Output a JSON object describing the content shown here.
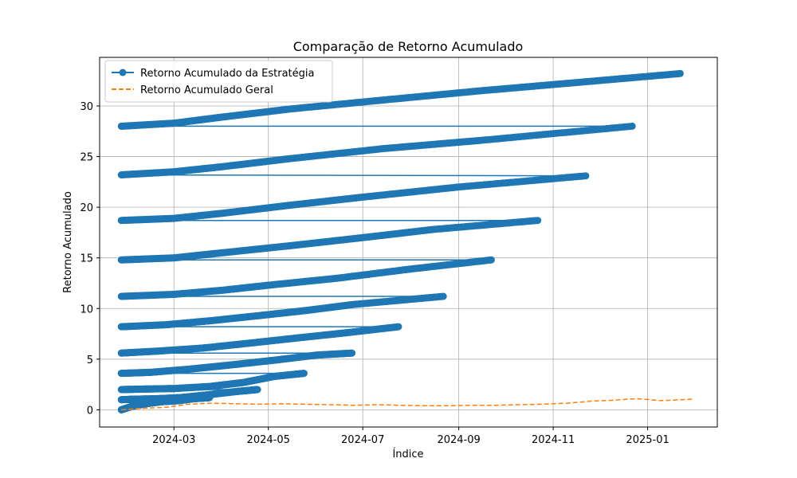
{
  "chart_data": {
    "type": "line",
    "title": "Comparação de Retorno Acumulado",
    "xlabel": "Índice",
    "ylabel": "Retorno Acumulado",
    "x_axis_type": "date",
    "xlim": [
      "2024-01-13",
      "2025-02-15"
    ],
    "ylim": [
      -1.7,
      34.8
    ],
    "x_ticks": [
      "2024-03-01",
      "2024-05-01",
      "2024-07-01",
      "2024-09-01",
      "2024-11-01",
      "2025-01-01"
    ],
    "x_tick_labels": [
      "2024-03",
      "2024-05",
      "2024-07",
      "2024-09",
      "2024-11",
      "2025-01"
    ],
    "y_ticks": [
      0,
      5,
      10,
      15,
      20,
      25,
      30
    ],
    "y_tick_labels": [
      "0",
      "5",
      "10",
      "15",
      "20",
      "25",
      "30"
    ],
    "grid": true,
    "legend_position": "top-left",
    "series": [
      {
        "name": "Retorno Acumulado da Estratégia",
        "color": "#1f77b4",
        "linestyle": "solid",
        "marker": "circle",
        "segments": [
          {
            "x": [
              "2024-01-27",
              "2024-02-02",
              "2024-02-12",
              "2024-02-22",
              "2024-03-04",
              "2024-03-14",
              "2024-03-24"
            ],
            "y": [
              0.0,
              0.3,
              0.6,
              0.8,
              0.9,
              1.1,
              1.2
            ]
          },
          {
            "x": [
              "2024-01-27",
              "2024-02-06",
              "2024-02-20",
              "2024-03-05",
              "2024-03-24",
              "2024-04-10",
              "2024-04-24"
            ],
            "y": [
              1.0,
              1.05,
              1.1,
              1.2,
              1.5,
              1.8,
              2.0
            ]
          },
          {
            "x": [
              "2024-01-27",
              "2024-02-12",
              "2024-03-01",
              "2024-03-24",
              "2024-04-15",
              "2024-05-05",
              "2024-05-24"
            ],
            "y": [
              2.0,
              2.05,
              2.1,
              2.3,
              2.7,
              3.3,
              3.6
            ]
          },
          {
            "x": [
              "2024-01-27",
              "2024-02-15",
              "2024-03-10",
              "2024-04-05",
              "2024-05-05",
              "2024-06-01",
              "2024-06-24"
            ],
            "y": [
              3.6,
              3.7,
              4.0,
              4.4,
              4.9,
              5.4,
              5.6
            ]
          },
          {
            "x": [
              "2024-01-27",
              "2024-02-20",
              "2024-03-20",
              "2024-04-20",
              "2024-05-20",
              "2024-06-20",
              "2024-07-24"
            ],
            "y": [
              5.6,
              5.8,
              6.1,
              6.6,
              7.1,
              7.6,
              8.2
            ]
          },
          {
            "x": [
              "2024-01-27",
              "2024-02-25",
              "2024-03-25",
              "2024-04-25",
              "2024-05-25",
              "2024-06-25",
              "2024-08-22"
            ],
            "y": [
              8.2,
              8.4,
              8.8,
              9.3,
              9.8,
              10.4,
              11.2
            ]
          },
          {
            "x": [
              "2024-01-27",
              "2024-03-01",
              "2024-04-01",
              "2024-05-01",
              "2024-06-15",
              "2024-08-01",
              "2024-09-22"
            ],
            "y": [
              11.2,
              11.4,
              11.8,
              12.3,
              13.0,
              13.9,
              14.8
            ]
          },
          {
            "x": [
              "2024-01-27",
              "2024-03-01",
              "2024-04-01",
              "2024-05-15",
              "2024-07-01",
              "2024-08-15",
              "2024-10-22"
            ],
            "y": [
              14.8,
              15.0,
              15.5,
              16.2,
              17.0,
              17.8,
              18.7
            ]
          },
          {
            "x": [
              "2024-01-27",
              "2024-03-01",
              "2024-04-01",
              "2024-05-15",
              "2024-07-01",
              "2024-09-01",
              "2024-11-22"
            ],
            "y": [
              18.7,
              18.9,
              19.4,
              20.2,
              21.0,
              22.0,
              23.1
            ]
          },
          {
            "x": [
              "2024-01-27",
              "2024-03-01",
              "2024-04-01",
              "2024-05-15",
              "2024-07-15",
              "2024-09-15",
              "2024-12-22"
            ],
            "y": [
              23.2,
              23.5,
              24.0,
              24.8,
              25.8,
              26.6,
              28.0
            ]
          },
          {
            "x": [
              "2024-01-27",
              "2024-03-01",
              "2024-04-01",
              "2024-05-15",
              "2024-07-15",
              "2024-09-15",
              "2024-11-15",
              "2025-01-22"
            ],
            "y": [
              28.0,
              28.3,
              28.9,
              29.7,
              30.6,
              31.5,
              32.3,
              33.2
            ]
          }
        ]
      },
      {
        "name": "Retorno Acumulado Geral",
        "color": "#ff7f0e",
        "linestyle": "dashed",
        "marker": "none",
        "x": [
          "2024-01-27",
          "2024-02-10",
          "2024-02-25",
          "2024-03-10",
          "2024-03-25",
          "2024-04-10",
          "2024-04-25",
          "2024-05-10",
          "2024-05-25",
          "2024-06-10",
          "2024-06-25",
          "2024-07-10",
          "2024-07-25",
          "2024-08-10",
          "2024-08-25",
          "2024-09-10",
          "2024-09-25",
          "2024-10-10",
          "2024-10-25",
          "2024-11-10",
          "2024-11-25",
          "2024-12-10",
          "2024-12-25",
          "2025-01-10",
          "2025-01-30"
        ],
        "y": [
          0.0,
          0.15,
          0.25,
          0.55,
          0.65,
          0.6,
          0.55,
          0.6,
          0.55,
          0.5,
          0.45,
          0.5,
          0.45,
          0.4,
          0.4,
          0.45,
          0.45,
          0.5,
          0.55,
          0.65,
          0.85,
          0.95,
          1.1,
          0.9,
          1.05
        ]
      }
    ]
  }
}
